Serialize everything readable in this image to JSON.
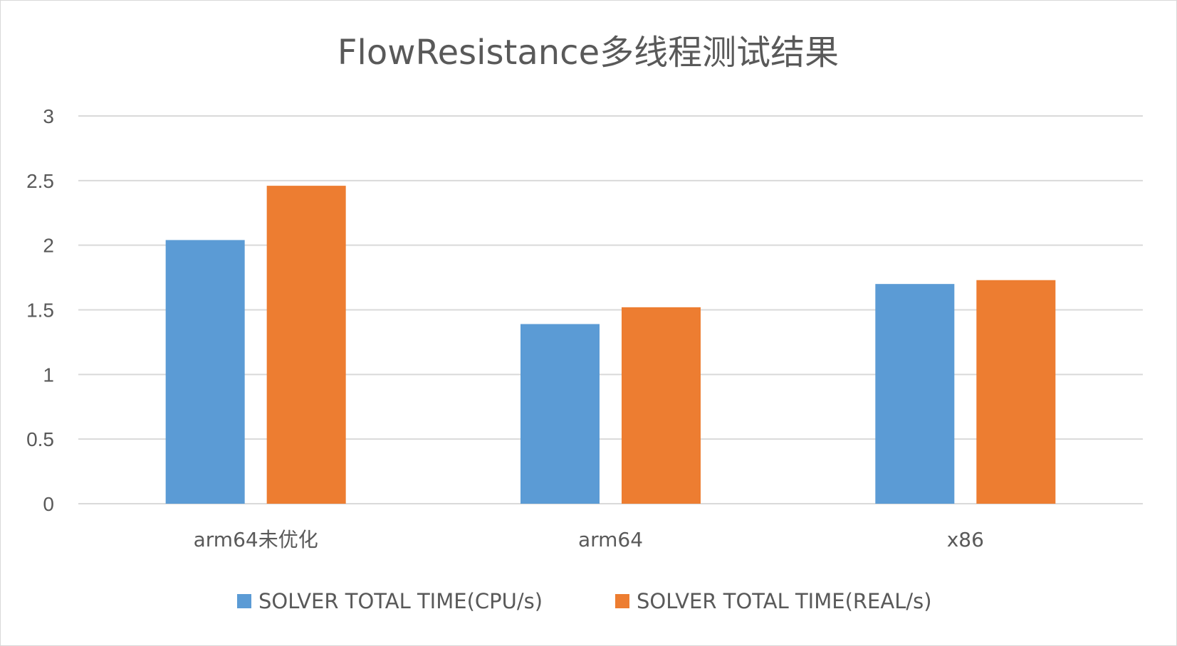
{
  "chart_data": {
    "type": "bar",
    "title": "FlowResistance多线程测试结果",
    "categories": [
      "arm64未优化",
      "arm64",
      "x86"
    ],
    "series": [
      {
        "name": "SOLVER TOTAL TIME(CPU/s)",
        "color": "#5b9bd5",
        "values": [
          2.04,
          1.39,
          1.7
        ]
      },
      {
        "name": "SOLVER TOTAL TIME(REAL/s)",
        "color": "#ed7d31",
        "values": [
          2.46,
          1.52,
          1.73
        ]
      }
    ],
    "ylim": [
      0,
      3
    ],
    "yticks": [
      "0",
      "0.5",
      "1",
      "1.5",
      "2",
      "2.5",
      "3"
    ],
    "grid": true,
    "legend": "bottom"
  }
}
